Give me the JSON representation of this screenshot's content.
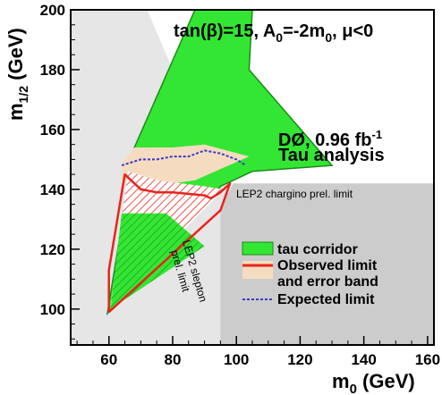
{
  "chart_data": {
    "type": "area",
    "xlabel_main": "m",
    "xlabel_sub": "0",
    "xlabel_unit": " (GeV)",
    "ylabel_main": "m",
    "ylabel_sub": "1/2",
    "ylabel_unit": " (GeV)",
    "xlim": [
      48,
      162
    ],
    "ylim": [
      88,
      200
    ],
    "xticks": [
      60,
      80,
      100,
      120,
      140,
      160
    ],
    "yticks": [
      100,
      120,
      140,
      160,
      180,
      200
    ],
    "xtick_labels": [
      "60",
      "80",
      "100",
      "120",
      "140",
      "160"
    ],
    "ytick_labels": [
      "100",
      "120",
      "140",
      "160",
      "180",
      "200"
    ],
    "title_line": {
      "p1": "tan(β)=15, A",
      "p2": "0",
      "p3": "=-2m",
      "p4": "0",
      "p5": ", μ<0"
    },
    "experiment_label": "DØ, 0.96 fb",
    "experiment_sup": "-1",
    "analysis_label": "Tau analysis",
    "chargino_label": "LEP2 chargino prel. limit",
    "slepton_label_1": "LEP2 slepton",
    "slepton_label_2": "prel. limit",
    "legend": [
      {
        "label": "tau corridor"
      },
      {
        "label": "Observed limit"
      },
      {
        "label": "and error band"
      },
      {
        "label": "Expected limit"
      }
    ],
    "colors": {
      "tau_corridor": "#33e633",
      "corridor_edge": "#1a8a1a",
      "error_band": "#f5dcc0",
      "observed": "#e8231c",
      "expected": "#3a3acc",
      "slepton_excluded": "#e6e6e6",
      "chargino_excluded": "#cccccc"
    },
    "regions": {
      "slepton_excluded": [
        [
          48,
          200
        ],
        [
          72,
          200
        ],
        [
          84,
          170
        ],
        [
          97,
          145
        ],
        [
          95,
          88
        ],
        [
          48,
          88
        ]
      ],
      "chargino_excluded": [
        [
          99,
          142
        ],
        [
          162,
          142
        ],
        [
          162,
          88
        ],
        [
          95,
          88
        ],
        [
          95,
          134
        ]
      ],
      "tau_corridor": [
        [
          59.5,
          98.5
        ],
        [
          68,
          154
        ],
        [
          87,
          200
        ],
        [
          105,
          200
        ],
        [
          104,
          180
        ],
        [
          130,
          148
        ],
        [
          105,
          146
        ],
        [
          95,
          141
        ],
        [
          59.5,
          98.5
        ]
      ],
      "error_band": [
        [
          64,
          149
        ],
        [
          68,
          154
        ],
        [
          80,
          154
        ],
        [
          90,
          155
        ],
        [
          104,
          151
        ],
        [
          87,
          143
        ],
        [
          80,
          142
        ],
        [
          64,
          142
        ]
      ],
      "observed_hatched_region": [
        [
          60.5,
          101
        ],
        [
          66,
          146
        ],
        [
          75,
          143
        ],
        [
          90,
          141
        ],
        [
          96,
          140
        ],
        [
          60.5,
          101
        ]
      ],
      "lower_green_region": [
        [
          60.5,
          100
        ],
        [
          64,
          132
        ],
        [
          78,
          132
        ],
        [
          90,
          121
        ],
        [
          60.5,
          100
        ]
      ]
    },
    "series": [
      {
        "name": "Observed limit",
        "x": [
          60,
          60,
          65,
          70,
          75,
          80,
          90,
          92,
          95,
          98,
          95,
          60
        ],
        "y": [
          99,
          113,
          145,
          140,
          139,
          139,
          138,
          137,
          139,
          142,
          133,
          99
        ]
      },
      {
        "name": "Expected limit",
        "x": [
          64,
          70,
          75,
          80,
          85,
          90,
          95,
          100,
          103
        ],
        "y": [
          148,
          150,
          150,
          151,
          151,
          153,
          152,
          150,
          148
        ]
      }
    ]
  }
}
